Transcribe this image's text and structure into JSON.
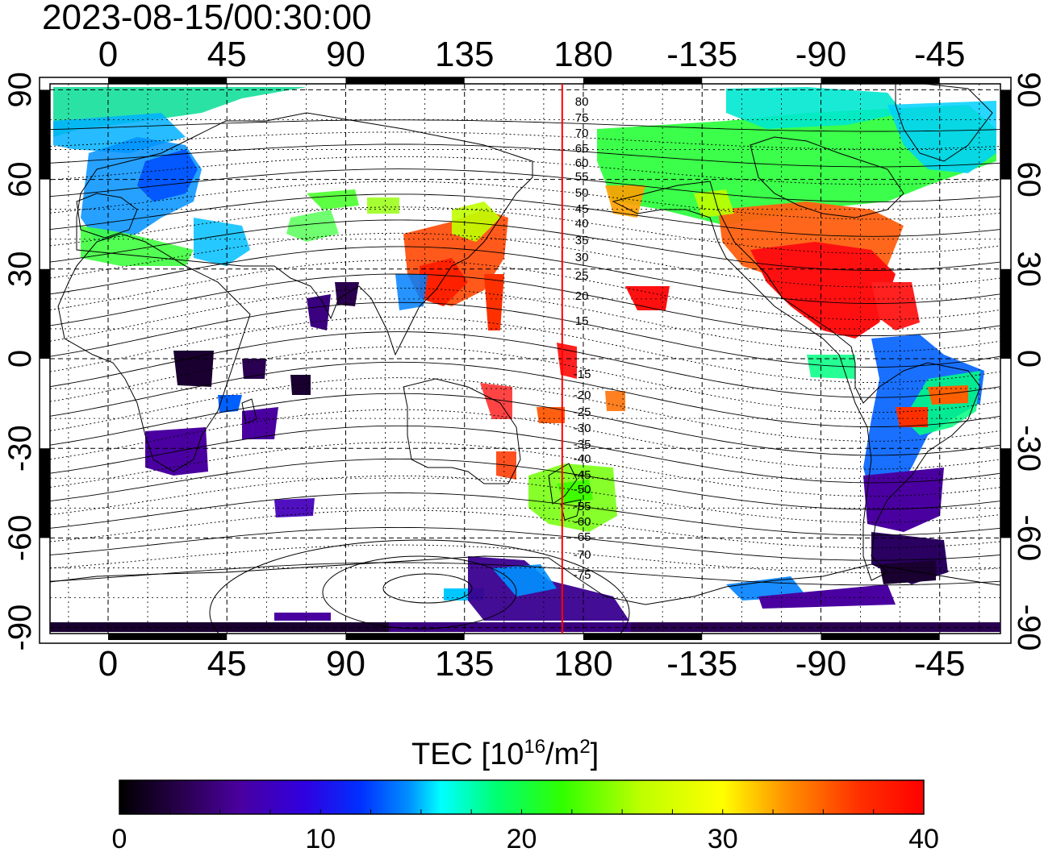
{
  "map": {
    "timestamp": "2023-08-15/00:30:00",
    "lon_ticks": [
      "0",
      "45",
      "90",
      "135",
      "180",
      "-135",
      "-90",
      "-45"
    ],
    "lat_ticks": [
      "90",
      "60",
      "30",
      "0",
      "-30",
      "-60",
      "-90"
    ],
    "lon_values": [
      0,
      45,
      90,
      135,
      180,
      225,
      270,
      315
    ],
    "lat_values": [
      90,
      60,
      30,
      0,
      -30,
      -60,
      -90
    ],
    "lon_range": [
      -22,
      338
    ],
    "lat_range": [
      -92,
      92
    ],
    "meridian_line": {
      "lon": 172.0,
      "color": "#ff0000"
    },
    "contour_labels_north": [
      "80",
      "75",
      "70",
      "65",
      "60",
      "55",
      "50",
      "45",
      "40",
      "35",
      "30",
      "25",
      "20",
      "15"
    ],
    "contour_labels_south": [
      "-15",
      "-20",
      "-25",
      "-30",
      "-35",
      "-40",
      "-45",
      "-50",
      "-55",
      "-60",
      "-65",
      "-70",
      "-75"
    ]
  },
  "colorbar": {
    "title_prefix": "TEC  [10",
    "title_sup1": "16",
    "title_mid": "/m",
    "title_sup2": "2",
    "title_suffix": "]",
    "tick_labels": [
      "0",
      "10",
      "20",
      "30",
      "40"
    ],
    "min": 0,
    "max": 40,
    "colors": [
      "#000000",
      "#3a0070",
      "#5a00c0",
      "#0000ff",
      "#0090ff",
      "#00ffff",
      "#00ff60",
      "#40ff00",
      "#c0ff00",
      "#ffff00",
      "#ff9000",
      "#ff3000",
      "#ff0000"
    ]
  }
}
